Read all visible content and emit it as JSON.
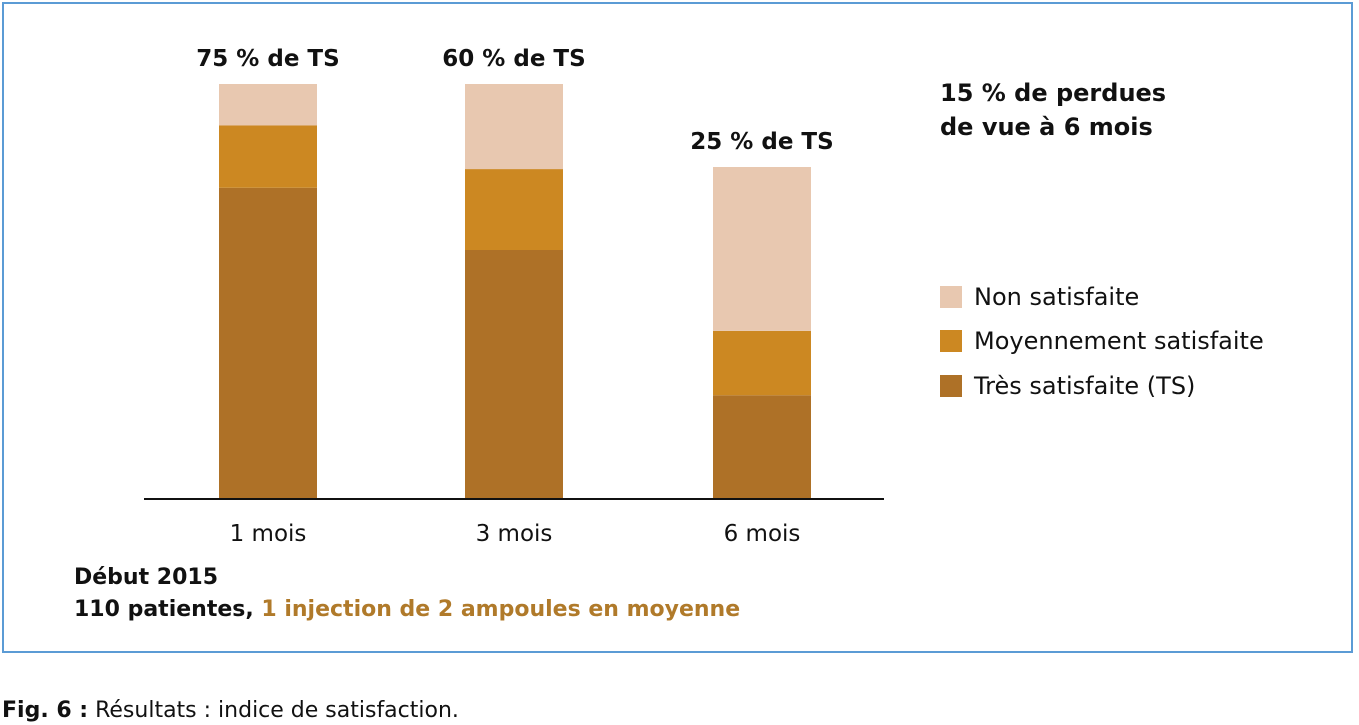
{
  "chart_data": {
    "type": "bar",
    "stacked": true,
    "categories": [
      "1 mois",
      "3 mois",
      "6 mois"
    ],
    "series": [
      {
        "name": "Très satisfaite (TS)",
        "values": [
          75,
          60,
          25
        ],
        "color": "#ae7127"
      },
      {
        "name": "Moyennement satisfaite",
        "values": [
          15,
          19.5,
          15.5
        ],
        "color": "#cc8822"
      },
      {
        "name": "Non satisfaite",
        "values": [
          10,
          20.5,
          39.5
        ],
        "color": "#e8c8b0"
      }
    ],
    "bar_labels": [
      "75 % de TS",
      "60 % de TS",
      "25 % de TS"
    ],
    "ylim": [
      0,
      100
    ],
    "grid": false,
    "legend_position": "right"
  },
  "note": "15 % de perdues\nde vue à 6 mois",
  "legend": [
    {
      "label": "Non satisfaite",
      "color": "#e8c8b0"
    },
    {
      "label": "Moyennement satisfaite",
      "color": "#cc8822"
    },
    {
      "label": "Très satisfaite (TS)",
      "color": "#ae7127"
    }
  ],
  "subtitle": {
    "line1": "Début 2015",
    "line2_prefix": "110 patientes, ",
    "line2_accent": "1 injection de 2 ampoules en moyenne"
  },
  "caption": {
    "label": "Fig. 6 :",
    "text": " Résultats : indice de satisfaction."
  },
  "colors": {
    "frame": "#5b9bd5",
    "accent_text": "#b07a2a"
  }
}
